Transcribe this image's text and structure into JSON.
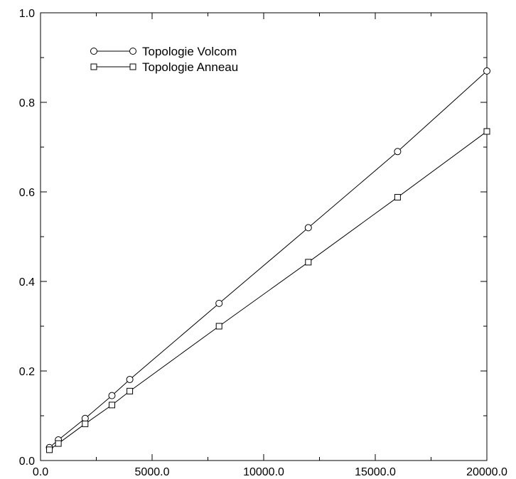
{
  "chart_data": {
    "type": "line",
    "title": "",
    "xlabel": "",
    "ylabel": "",
    "xlim": [
      0,
      20000
    ],
    "ylim": [
      0.0,
      1.0
    ],
    "x_ticks": [
      0,
      5000,
      10000,
      15000,
      20000
    ],
    "x_tick_labels": [
      "0.0",
      "5000.0",
      "10000.0",
      "15000.0",
      "20000.0"
    ],
    "y_ticks": [
      0.0,
      0.2,
      0.4,
      0.6,
      0.8,
      1.0
    ],
    "y_tick_labels": [
      "0.0",
      "0.2",
      "0.4",
      "0.6",
      "0.8",
      "1.0"
    ],
    "grid": false,
    "legend_position": "top-left",
    "series": [
      {
        "name": "Topologie Volcom",
        "marker": "circle",
        "color": "#000000",
        "x": [
          400,
          800,
          2000,
          3200,
          4000,
          8000,
          12000,
          16000,
          20000
        ],
        "y": [
          0.029,
          0.046,
          0.094,
          0.145,
          0.181,
          0.351,
          0.52,
          0.69,
          0.87
        ]
      },
      {
        "name": "Topologie Anneau",
        "marker": "square",
        "color": "#000000",
        "x": [
          400,
          800,
          2000,
          3200,
          4000,
          8000,
          12000,
          16000,
          20000
        ],
        "y": [
          0.024,
          0.038,
          0.082,
          0.124,
          0.155,
          0.3,
          0.443,
          0.588,
          0.735
        ]
      }
    ]
  }
}
